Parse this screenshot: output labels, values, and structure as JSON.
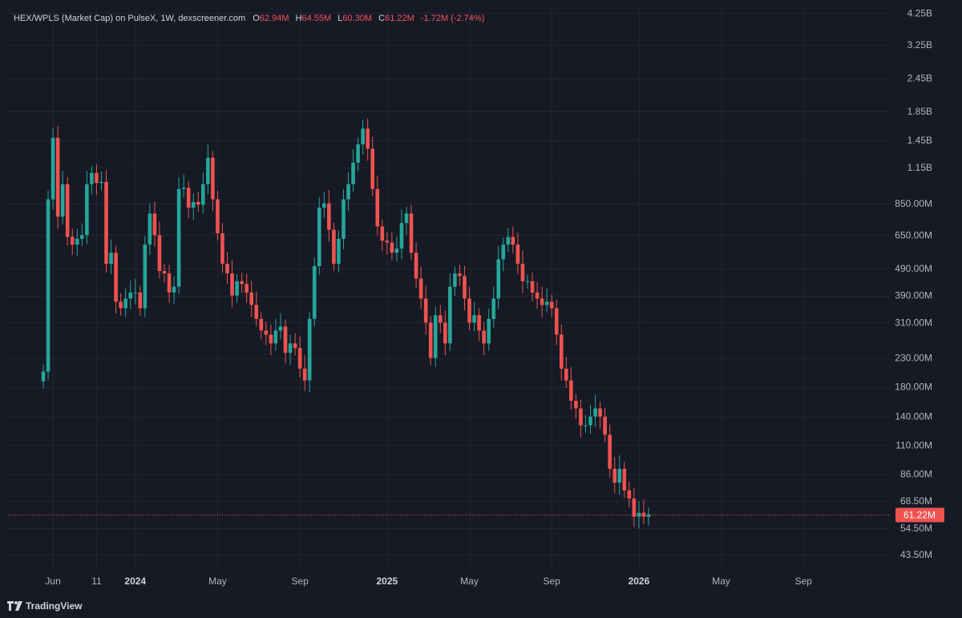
{
  "header": {
    "title": "HEX/WPLS (Market Cap) on PulseX, 1W, dexscreener.com",
    "open_label": "O",
    "open": "62.94M",
    "high_label": "H",
    "high": "64.55M",
    "low_label": "L",
    "low": "60.30M",
    "close_label": "C",
    "close": "61.22M",
    "change": "-1.72M (-2.74%)"
  },
  "brand": {
    "name": "TradingView",
    "logo_icon": "tradingview-logo-icon"
  },
  "colors": {
    "background": "#161a25",
    "up": "#26a69a",
    "down": "#ef5350",
    "grid": "#232632",
    "axis_text": "#b2b5be",
    "last_price_line": "#ef5350"
  },
  "chart_data": {
    "type": "candlestick",
    "interval": "1W",
    "y_scale": "log",
    "ylim": [
      38000000,
      4500000000
    ],
    "grid": true,
    "current_price_label": "61.22M",
    "current_price": 61220000,
    "y_ticks": [
      {
        "label": "4.25B",
        "value": 4250000000
      },
      {
        "label": "3.25B",
        "value": 3250000000
      },
      {
        "label": "2.45B",
        "value": 2450000000
      },
      {
        "label": "1.85B",
        "value": 1850000000
      },
      {
        "label": "1.45B",
        "value": 1450000000
      },
      {
        "label": "1.15B",
        "value": 1150000000
      },
      {
        "label": "850.00M",
        "value": 850000000
      },
      {
        "label": "650.00M",
        "value": 650000000
      },
      {
        "label": "490.00M",
        "value": 490000000
      },
      {
        "label": "390.00M",
        "value": 390000000
      },
      {
        "label": "310.00M",
        "value": 310000000
      },
      {
        "label": "230.00M",
        "value": 230000000
      },
      {
        "label": "180.00M",
        "value": 180000000
      },
      {
        "label": "140.00M",
        "value": 140000000
      },
      {
        "label": "110.00M",
        "value": 110000000
      },
      {
        "label": "86.00M",
        "value": 86000000
      },
      {
        "label": "68.50M",
        "value": 68500000
      },
      {
        "label": "54.50M",
        "value": 54500000
      },
      {
        "label": "43.50M",
        "value": 43500000
      }
    ],
    "x_ticks": [
      {
        "label": "Jun",
        "week": 2,
        "bold": false
      },
      {
        "label": "11",
        "week": 11,
        "bold": false
      },
      {
        "label": "2024",
        "week": 19,
        "bold": true
      },
      {
        "label": "May",
        "week": 36,
        "bold": false
      },
      {
        "label": "Sep",
        "week": 53,
        "bold": false
      },
      {
        "label": "2025",
        "week": 71,
        "bold": true
      },
      {
        "label": "May",
        "week": 88,
        "bold": false
      },
      {
        "label": "Sep",
        "week": 105,
        "bold": false
      },
      {
        "label": "2026",
        "week": 123,
        "bold": true
      },
      {
        "label": "May",
        "week": 140,
        "bold": false
      },
      {
        "label": "Sep",
        "week": 157,
        "bold": false
      }
    ],
    "close_values_millions": [
      205,
      880,
      1480,
      760,
      1000,
      640,
      600,
      630,
      650,
      1000,
      1100,
      1010,
      1020,
      510,
      560,
      370,
      350,
      380,
      400,
      400,
      350,
      600,
      780,
      650,
      480,
      470,
      400,
      420,
      960,
      970,
      820,
      860,
      840,
      1000,
      1250,
      880,
      660,
      510,
      470,
      390,
      440,
      430,
      400,
      360,
      320,
      290,
      280,
      260,
      290,
      300,
      240,
      260,
      250,
      210,
      190,
      320,
      500,
      820,
      850,
      680,
      510,
      630,
      880,
      1000,
      1200,
      1400,
      1600,
      1350,
      960,
      700,
      620,
      610,
      560,
      580,
      720,
      780,
      560,
      450,
      380,
      310,
      230,
      330,
      310,
      260,
      420,
      470,
      460,
      380,
      310,
      330,
      290,
      260,
      320,
      380,
      530,
      600,
      640,
      600,
      510,
      440,
      440,
      400,
      380,
      360,
      370,
      350,
      280,
      210,
      190,
      160,
      150,
      130,
      130,
      140,
      150,
      140,
      120,
      90,
      80,
      90,
      75,
      70,
      60,
      62,
      60,
      61.22
    ]
  }
}
